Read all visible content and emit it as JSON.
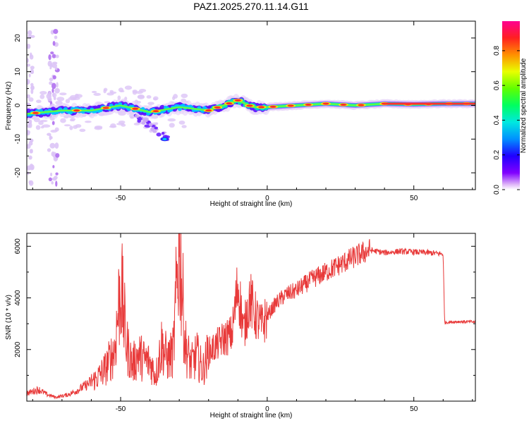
{
  "title": "PAZ1.2025.270.11.14.G11",
  "colors": {
    "snr_line": "#e83a3a",
    "background": "#ffffff",
    "axis": "#000000"
  },
  "chart_data": [
    {
      "type": "heatmap",
      "title": "PAZ1.2025.270.11.14.G11",
      "xlabel": "Height of straight line (km)",
      "ylabel": "Frequency (Hz)",
      "xlim": [
        -82,
        71
      ],
      "ylim": [
        -25,
        25
      ],
      "xticks": [
        -50,
        0,
        50
      ],
      "yticks": [
        -20,
        -10,
        0,
        10,
        20
      ],
      "colorbar": {
        "label": "Normalized spectral amplitude",
        "range": [
          0.0,
          0.97
        ],
        "ticks": [
          "0.0",
          "0.2",
          "0.4",
          "0.6",
          "0.8"
        ],
        "colormap": "rainbow"
      },
      "ridge": {
        "x": [
          -82,
          -70,
          -60,
          -50,
          -40,
          -30,
          -20,
          -15,
          -10,
          -5,
          0,
          10,
          20,
          30,
          40,
          50,
          60,
          71
        ],
        "y": [
          -2.5,
          -1.5,
          -1.5,
          0.0,
          -2.0,
          -0.5,
          -1.5,
          0.0,
          1.5,
          -0.5,
          -0.5,
          0.0,
          0.5,
          0.0,
          0.5,
          0.3,
          0.5,
          0.5
        ]
      }
    },
    {
      "type": "line",
      "xlabel": "Height of straight line (km)",
      "ylabel": "SNR (10 * v/v)",
      "xlim": [
        -82,
        71
      ],
      "ylim": [
        0,
        6500
      ],
      "xticks": [
        -50,
        0,
        50
      ],
      "yticks": [
        2000,
        4000,
        6000
      ],
      "series": [
        {
          "name": "SNR",
          "x": [
            -82,
            -78,
            -75,
            -72,
            -68,
            -65,
            -62,
            -58,
            -55,
            -52,
            -50,
            -48,
            -46,
            -44,
            -42,
            -40,
            -38,
            -36,
            -34,
            -32,
            -30,
            -28,
            -26,
            -24,
            -22,
            -20,
            -18,
            -15,
            -12,
            -10,
            -8,
            -6,
            -4,
            -2,
            0,
            3,
            6,
            10,
            15,
            20,
            25,
            30,
            35,
            40,
            45,
            50,
            55,
            60,
            60.5,
            65,
            71
          ],
          "y": [
            300,
            450,
            250,
            150,
            250,
            400,
            600,
            900,
            1300,
            2000,
            4600,
            2200,
            1400,
            1800,
            1600,
            1500,
            1000,
            2200,
            1600,
            1900,
            6400,
            2200,
            1400,
            1800,
            1200,
            1900,
            2100,
            2400,
            2600,
            4500,
            2700,
            4000,
            3300,
            2900,
            3300,
            3800,
            4100,
            4300,
            4700,
            5000,
            5300,
            5600,
            5850,
            5750,
            5800,
            5780,
            5750,
            5700,
            3050,
            3080,
            3070
          ]
        }
      ]
    }
  ]
}
